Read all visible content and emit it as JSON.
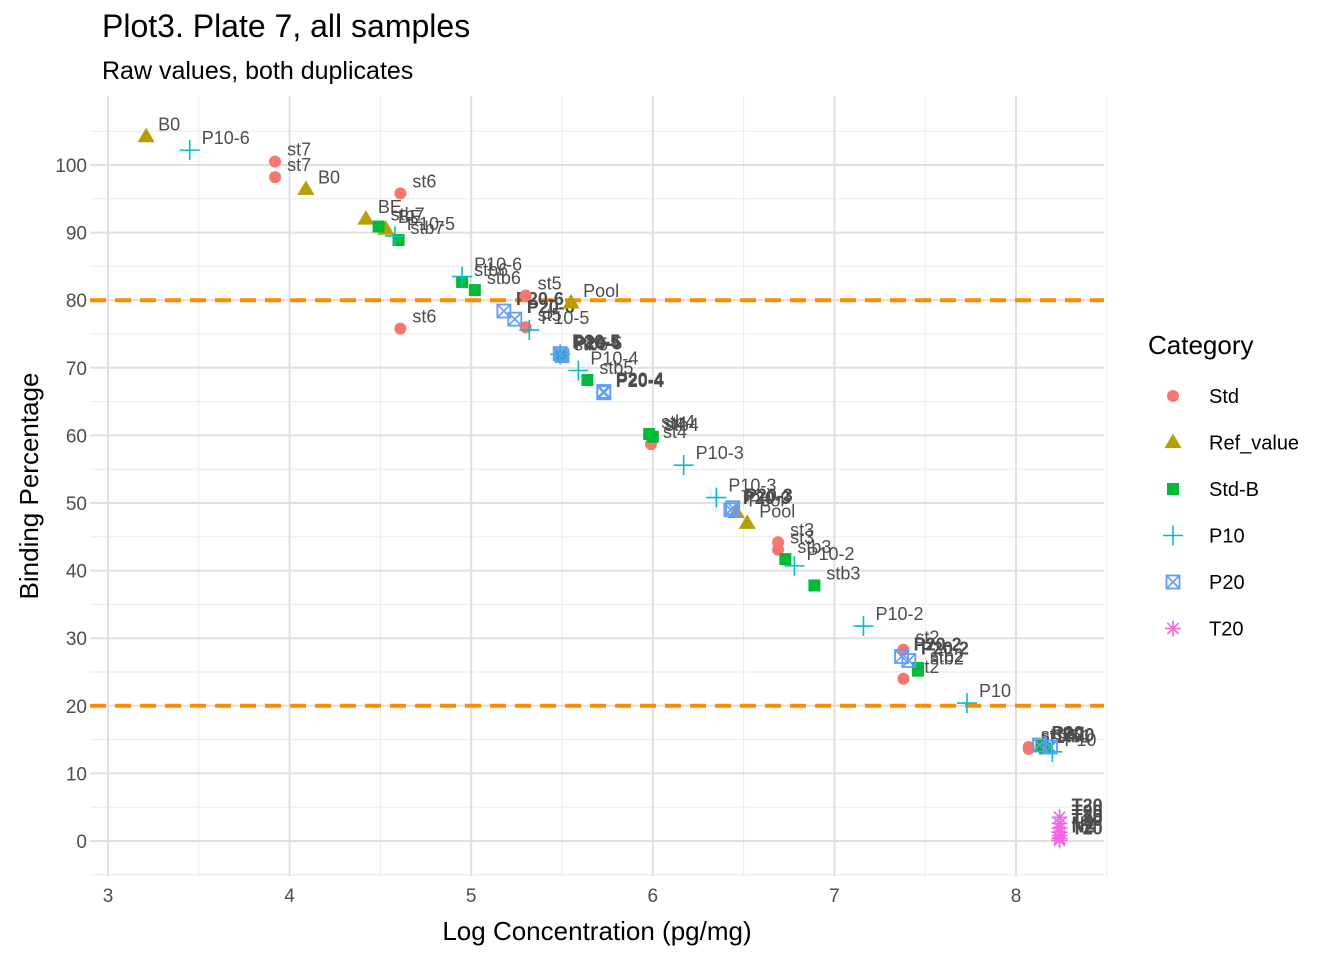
{
  "chart_data": {
    "type": "scatter",
    "title": "Plot3. Plate 7, all samples",
    "subtitle": "Raw values, both duplicates",
    "xlabel": "Log Concentration (pg/mg)",
    "ylabel": "Binding Percentage",
    "xlim": [
      2.98,
      8.5
    ],
    "ylim": [
      -5,
      109
    ],
    "x_ticks": [
      3,
      4,
      5,
      6,
      7,
      8
    ],
    "y_ticks": [
      0,
      10,
      20,
      30,
      40,
      50,
      60,
      70,
      80,
      90,
      100
    ],
    "grid": true,
    "hlines": [
      {
        "y": 20,
        "color": "#FF8C00",
        "style": "dashed"
      },
      {
        "y": 80,
        "color": "#FF8C00",
        "style": "dashed"
      }
    ],
    "legend": {
      "title": "Category",
      "position": "right",
      "entries": [
        {
          "name": "Std",
          "color": "#F8766D",
          "shape": "circle"
        },
        {
          "name": "Ref_value",
          "color": "#B79F00",
          "shape": "triangle"
        },
        {
          "name": "Std-B",
          "color": "#00BA38",
          "shape": "square"
        },
        {
          "name": "P10",
          "color": "#00BFC4",
          "shape": "plus"
        },
        {
          "name": "P20",
          "color": "#619CFF",
          "shape": "boxx"
        },
        {
          "name": "T20",
          "color": "#F564E3",
          "shape": "star"
        }
      ]
    },
    "series": [
      {
        "name": "Std",
        "points": [
          {
            "x": 3.92,
            "y": 100.5,
            "label": "st7"
          },
          {
            "x": 3.92,
            "y": 98.2,
            "label": "st7"
          },
          {
            "x": 4.61,
            "y": 95.8,
            "label": "st6"
          },
          {
            "x": 4.61,
            "y": 75.8,
            "label": "st6"
          },
          {
            "x": 5.3,
            "y": 80.7,
            "label": "st5"
          },
          {
            "x": 5.3,
            "y": 76,
            "label": "st5"
          },
          {
            "x": 5.99,
            "y": 60,
            "label": "st4"
          },
          {
            "x": 5.99,
            "y": 58.7,
            "label": "st4"
          },
          {
            "x": 6.69,
            "y": 44.2,
            "label": "st3"
          },
          {
            "x": 6.69,
            "y": 43.1,
            "label": "st3"
          },
          {
            "x": 7.38,
            "y": 28.3,
            "label": "st2"
          },
          {
            "x": 7.38,
            "y": 24,
            "label": "st2"
          },
          {
            "x": 8.07,
            "y": 13.6,
            "label": "st1"
          },
          {
            "x": 8.07,
            "y": 13.9,
            "label": "st1"
          }
        ]
      },
      {
        "name": "Ref_value",
        "points": [
          {
            "x": 3.21,
            "y": 104.2,
            "label": "B0"
          },
          {
            "x": 4.09,
            "y": 96.4,
            "label": "B0"
          },
          {
            "x": 4.42,
            "y": 92,
            "label": "BE"
          },
          {
            "x": 4.53,
            "y": 90.5,
            "label": "BE"
          },
          {
            "x": 5.55,
            "y": 79.6,
            "label": "Pool"
          },
          {
            "x": 6.46,
            "y": 48.6,
            "label": "Pool"
          },
          {
            "x": 6.52,
            "y": 47,
            "label": "Pool"
          }
        ]
      },
      {
        "name": "Std-B",
        "points": [
          {
            "x": 4.49,
            "y": 90.9,
            "label": "stb7"
          },
          {
            "x": 4.6,
            "y": 88.9,
            "label": "stb7"
          },
          {
            "x": 4.95,
            "y": 82.7,
            "label": "stb6"
          },
          {
            "x": 5.02,
            "y": 81.5,
            "label": "stb6"
          },
          {
            "x": 5.5,
            "y": 71.7,
            "label": "stb5"
          },
          {
            "x": 5.64,
            "y": 68.2,
            "label": "stb5"
          },
          {
            "x": 5.98,
            "y": 60.2,
            "label": "stb4"
          },
          {
            "x": 6,
            "y": 59.8,
            "label": "stb4"
          },
          {
            "x": 6.73,
            "y": 41.7,
            "label": "stb3"
          },
          {
            "x": 6.89,
            "y": 37.8,
            "label": "stb3"
          },
          {
            "x": 7.46,
            "y": 25.6,
            "label": "stb2"
          },
          {
            "x": 7.46,
            "y": 25.2,
            "label": "stb2"
          },
          {
            "x": 8.14,
            "y": 14.1,
            "label": "stb1"
          },
          {
            "x": 8.16,
            "y": 13.7,
            "label": "stb1"
          }
        ]
      },
      {
        "name": "P10",
        "points": [
          {
            "x": 3.45,
            "y": 102.2,
            "label": "P10-6"
          },
          {
            "x": 4.95,
            "y": 83.5,
            "label": "P10-6"
          },
          {
            "x": 4.58,
            "y": 89.5,
            "label": "P10-5"
          },
          {
            "x": 5.32,
            "y": 75.6,
            "label": "P10-5"
          },
          {
            "x": 5.49,
            "y": 72,
            "label": "P10-4"
          },
          {
            "x": 5.59,
            "y": 69.6,
            "label": "P10-4"
          },
          {
            "x": 6.17,
            "y": 55.6,
            "label": "P10-3"
          },
          {
            "x": 6.35,
            "y": 50.8,
            "label": "P10-3"
          },
          {
            "x": 6.78,
            "y": 40.7,
            "label": "P10-2"
          },
          {
            "x": 7.16,
            "y": 31.8,
            "label": "P10-2"
          },
          {
            "x": 7.73,
            "y": 20.4,
            "label": "P10"
          },
          {
            "x": 8.2,
            "y": 13.2,
            "label": "P10"
          }
        ]
      },
      {
        "name": "P20",
        "points": [
          {
            "x": 5.18,
            "y": 78.4,
            "label": "P20-6"
          },
          {
            "x": 5.24,
            "y": 77.2,
            "label": "P20-6"
          },
          {
            "x": 5.5,
            "y": 71.8,
            "label": "P20-5"
          },
          {
            "x": 5.49,
            "y": 72.1,
            "label": "P20-5"
          },
          {
            "x": 5.73,
            "y": 66.3,
            "label": "P20-4"
          },
          {
            "x": 5.73,
            "y": 66.5,
            "label": "P20-4"
          },
          {
            "x": 6.43,
            "y": 49,
            "label": "P20-3"
          },
          {
            "x": 6.44,
            "y": 49.3,
            "label": "P20-3"
          },
          {
            "x": 7.37,
            "y": 27.3,
            "label": "P20-2"
          },
          {
            "x": 7.41,
            "y": 26.7,
            "label": "P20-2"
          },
          {
            "x": 8.13,
            "y": 14.2,
            "label": "P20"
          },
          {
            "x": 8.19,
            "y": 13.9,
            "label": "P20"
          }
        ]
      },
      {
        "name": "T20",
        "points": [
          {
            "x": 8.24,
            "y": 3.5,
            "label": "T20"
          },
          {
            "x": 8.24,
            "y": 2.6,
            "label": "T20"
          },
          {
            "x": 8.24,
            "y": 1.9,
            "label": "T20"
          },
          {
            "x": 8.24,
            "y": 1.3,
            "label": "T20"
          },
          {
            "x": 8.24,
            "y": 0.8,
            "label": "N2"
          },
          {
            "x": 8.24,
            "y": 0.4,
            "label": "N2"
          },
          {
            "x": 8.24,
            "y": 0.1,
            "label": "T20"
          }
        ]
      }
    ]
  }
}
